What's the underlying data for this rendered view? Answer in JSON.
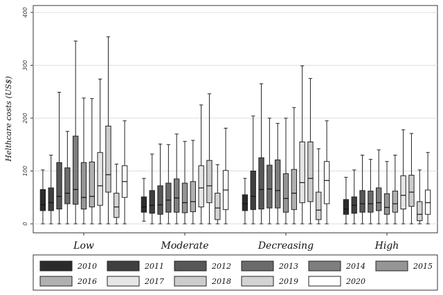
{
  "chart_data": {
    "type": "boxplot",
    "ylabel": "Helthcare costs (US$)",
    "xlabel": "",
    "ylim": [
      0,
      400
    ],
    "yticks": [
      0,
      100,
      200,
      300,
      400
    ],
    "grid": true,
    "legend_position": "bottom",
    "categories": [
      "Low",
      "Moderate",
      "Decreasing",
      "High"
    ],
    "series": [
      {
        "name": "2010",
        "color": "#2b2b2b",
        "boxes": [
          {
            "min": 0,
            "q1": 25,
            "median": 36,
            "q3": 65,
            "max": 102
          },
          {
            "min": 5,
            "q1": 22,
            "median": 32,
            "q3": 51,
            "max": 86
          },
          {
            "min": 0,
            "q1": 25,
            "median": 38,
            "q3": 55,
            "max": 86
          },
          {
            "min": 0,
            "q1": 18,
            "median": 28,
            "q3": 46,
            "max": 88
          }
        ]
      },
      {
        "name": "2011",
        "color": "#3f3f3f",
        "boxes": [
          {
            "min": 0,
            "q1": 25,
            "median": 40,
            "q3": 68,
            "max": 130
          },
          {
            "min": 0,
            "q1": 20,
            "median": 35,
            "q3": 63,
            "max": 132
          },
          {
            "min": 0,
            "q1": 27,
            "median": 52,
            "q3": 100,
            "max": 204
          },
          {
            "min": 0,
            "q1": 20,
            "median": 35,
            "q3": 51,
            "max": 102
          }
        ]
      },
      {
        "name": "2012",
        "color": "#575757",
        "boxes": [
          {
            "min": 0,
            "q1": 28,
            "median": 52,
            "q3": 116,
            "max": 249
          },
          {
            "min": 0,
            "q1": 18,
            "median": 36,
            "q3": 72,
            "max": 151
          },
          {
            "min": 0,
            "q1": 28,
            "median": 65,
            "q3": 125,
            "max": 265
          },
          {
            "min": 0,
            "q1": 22,
            "median": 38,
            "q3": 63,
            "max": 130
          }
        ]
      },
      {
        "name": "2013",
        "color": "#6b6b6b",
        "boxes": [
          {
            "min": 0,
            "q1": 38,
            "median": 58,
            "q3": 106,
            "max": 175
          },
          {
            "min": 0,
            "q1": 22,
            "median": 45,
            "q3": 77,
            "max": 150
          },
          {
            "min": 0,
            "q1": 30,
            "median": 66,
            "q3": 111,
            "max": 200
          },
          {
            "min": 0,
            "q1": 22,
            "median": 38,
            "q3": 62,
            "max": 122
          }
        ]
      },
      {
        "name": "2014",
        "color": "#7e7e7e",
        "boxes": [
          {
            "min": 0,
            "q1": 37,
            "median": 65,
            "q3": 166,
            "max": 346
          },
          {
            "min": 0,
            "q1": 22,
            "median": 49,
            "q3": 85,
            "max": 170
          },
          {
            "min": 0,
            "q1": 30,
            "median": 63,
            "q3": 121,
            "max": 190
          },
          {
            "min": 0,
            "q1": 25,
            "median": 40,
            "q3": 68,
            "max": 140
          }
        ]
      },
      {
        "name": "2015",
        "color": "#959595",
        "boxes": [
          {
            "min": 0,
            "q1": 28,
            "median": 50,
            "q3": 116,
            "max": 238
          },
          {
            "min": 0,
            "q1": 21,
            "median": 40,
            "q3": 77,
            "max": 156
          },
          {
            "min": 0,
            "q1": 22,
            "median": 48,
            "q3": 95,
            "max": 200
          },
          {
            "min": 0,
            "q1": 18,
            "median": 31,
            "q3": 57,
            "max": 118
          }
        ]
      },
      {
        "name": "2016",
        "color": "#b0b0b0",
        "boxes": [
          {
            "min": 0,
            "q1": 32,
            "median": 52,
            "q3": 117,
            "max": 237
          },
          {
            "min": 0,
            "q1": 23,
            "median": 42,
            "q3": 80,
            "max": 158
          },
          {
            "min": 0,
            "q1": 27,
            "median": 58,
            "q3": 103,
            "max": 220
          },
          {
            "min": 0,
            "q1": 22,
            "median": 38,
            "q3": 62,
            "max": 130
          }
        ]
      },
      {
        "name": "2017",
        "color": "#e6e6e6",
        "boxes": [
          {
            "min": 0,
            "q1": 35,
            "median": 72,
            "q3": 135,
            "max": 274
          },
          {
            "min": 0,
            "q1": 32,
            "median": 68,
            "q3": 110,
            "max": 225
          },
          {
            "min": 0,
            "q1": 40,
            "median": 78,
            "q3": 155,
            "max": 299
          },
          {
            "min": 0,
            "q1": 28,
            "median": 54,
            "q3": 91,
            "max": 178
          }
        ]
      },
      {
        "name": "2018",
        "color": "#cccccc",
        "boxes": [
          {
            "min": 0,
            "q1": 60,
            "median": 93,
            "q3": 185,
            "max": 354
          },
          {
            "min": 0,
            "q1": 40,
            "median": 72,
            "q3": 120,
            "max": 246
          },
          {
            "min": 0,
            "q1": 42,
            "median": 86,
            "q3": 155,
            "max": 275
          },
          {
            "min": 0,
            "q1": 33,
            "median": 60,
            "q3": 92,
            "max": 171
          }
        ]
      },
      {
        "name": "2019",
        "color": "#d3d3d3",
        "boxes": [
          {
            "min": 0,
            "q1": 12,
            "median": 32,
            "q3": 58,
            "max": 113
          },
          {
            "min": 0,
            "q1": 8,
            "median": 30,
            "q3": 58,
            "max": 112
          },
          {
            "min": 0,
            "q1": 8,
            "median": 26,
            "q3": 60,
            "max": 142
          },
          {
            "min": 0,
            "q1": 6,
            "median": 18,
            "q3": 42,
            "max": 102
          }
        ]
      },
      {
        "name": "2020",
        "color": "#ffffff",
        "boxes": [
          {
            "min": 0,
            "q1": 50,
            "median": 80,
            "q3": 110,
            "max": 195
          },
          {
            "min": 0,
            "q1": 27,
            "median": 64,
            "q3": 101,
            "max": 181
          },
          {
            "min": 0,
            "q1": 38,
            "median": 82,
            "q3": 118,
            "max": 195
          },
          {
            "min": 0,
            "q1": 18,
            "median": 40,
            "q3": 64,
            "max": 135
          }
        ]
      }
    ]
  }
}
